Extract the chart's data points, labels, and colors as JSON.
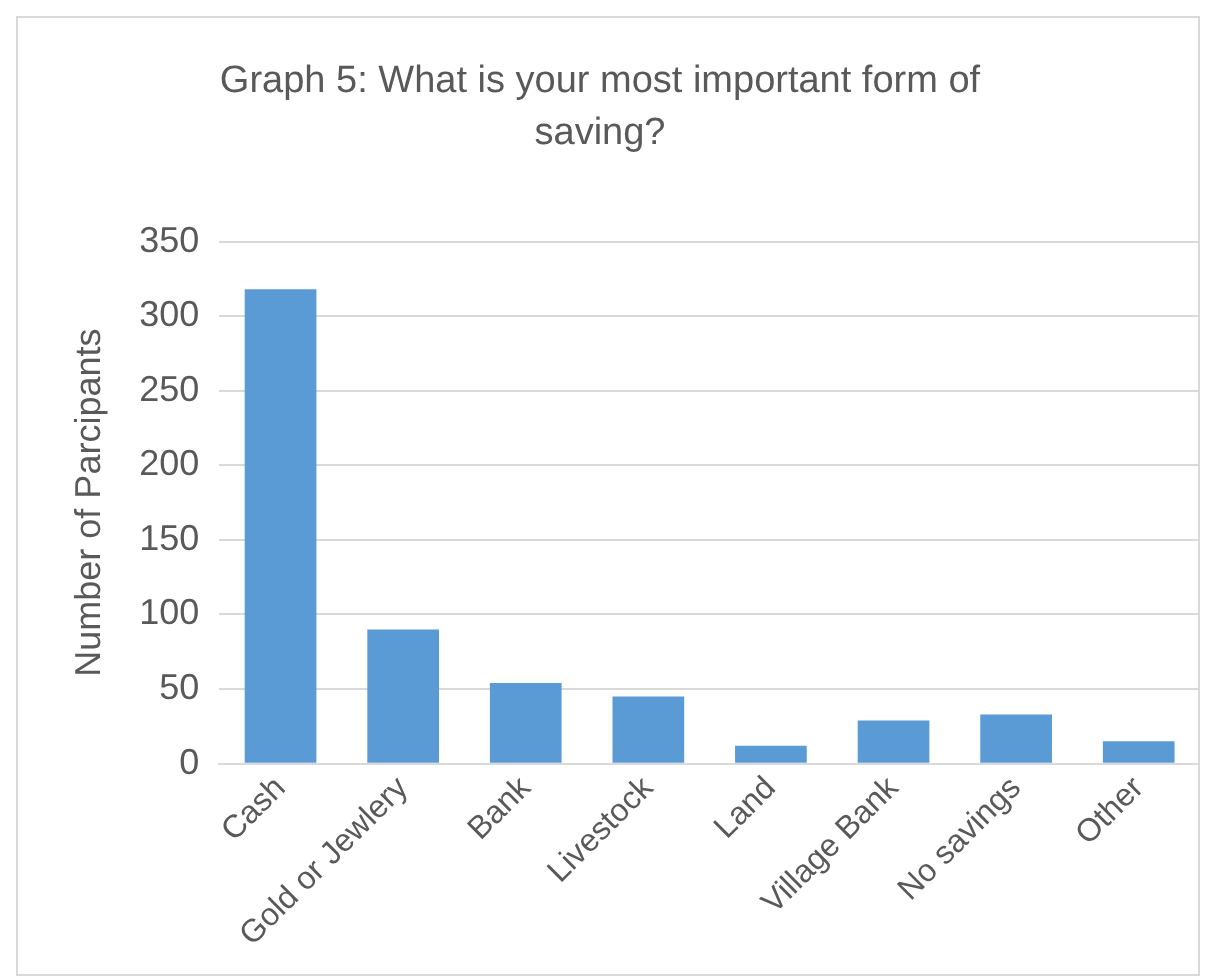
{
  "chart_data": {
    "type": "bar",
    "title": "Graph 5: What is your most important form of saving?",
    "ylabel": "Number of Parcipants",
    "categories": [
      "Cash",
      "Gold or Jewlery",
      "Bank",
      "Livestock",
      "Land",
      "Village Bank",
      "No savings",
      "Other"
    ],
    "values": [
      318,
      90,
      54,
      45,
      12,
      29,
      33,
      15
    ],
    "color": "#5b9bd5",
    "ylim": [
      0,
      350
    ],
    "yticks": [
      0,
      50,
      100,
      150,
      200,
      250,
      300,
      350
    ],
    "grid": "y",
    "legend": false
  }
}
